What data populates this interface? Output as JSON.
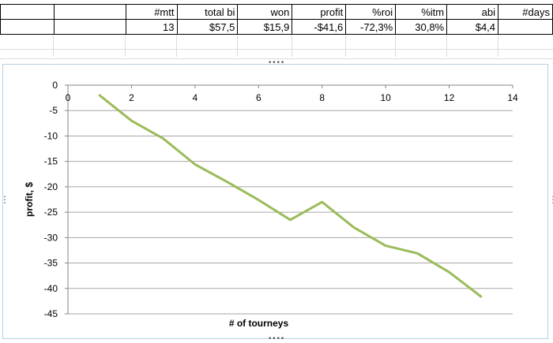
{
  "sheet": {
    "headers": [
      "",
      "",
      "#mtt",
      "total bi",
      "won",
      "profit",
      "%roi",
      "%itm",
      "abi",
      "#days"
    ],
    "values": [
      "",
      "",
      "13",
      "$57,5",
      "$15,9",
      "-$41,6",
      "-72,3%",
      "30,8%",
      "$4,4",
      ""
    ]
  },
  "chart_handles": {
    "top": "••••",
    "bottom": "••••",
    "right": "⋮",
    "left": "⋮"
  },
  "colors": {
    "series": "#9bbb59",
    "grid": "#a6a6a6",
    "chart_border": "#b9cde5"
  },
  "chart_data": {
    "type": "line",
    "title": "",
    "xlabel": "# of tourneys",
    "ylabel": "profit, $",
    "xlim": [
      0,
      14
    ],
    "ylim": [
      -45,
      0
    ],
    "x_ticks": [
      0,
      2,
      4,
      6,
      8,
      10,
      12,
      14
    ],
    "y_ticks": [
      0,
      -5,
      -10,
      -15,
      -20,
      -25,
      -30,
      -35,
      -40,
      -45
    ],
    "grid": "horizontal",
    "legend": "none",
    "series": [
      {
        "x": [
          1,
          2,
          3,
          4,
          5,
          6,
          7,
          8,
          9,
          10,
          11,
          12,
          13
        ],
        "values": [
          -2.0,
          -7.0,
          -10.5,
          -15.6,
          -19.0,
          -22.6,
          -26.5,
          -23.0,
          -28.0,
          -31.6,
          -33.1,
          -36.8,
          -41.6
        ]
      }
    ]
  }
}
